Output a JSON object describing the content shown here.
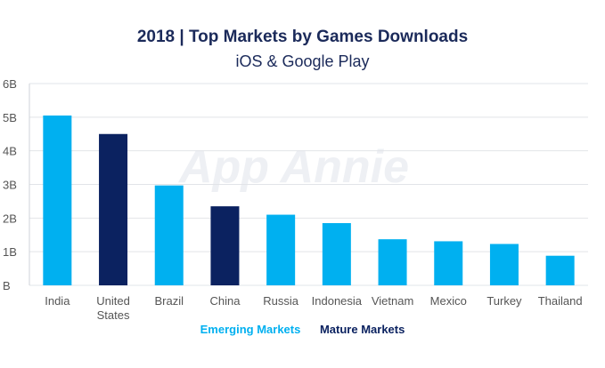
{
  "chart_data": {
    "type": "bar",
    "title": "2018 | Top Markets by Games Downloads",
    "subtitle": "iOS & Google Play",
    "watermark": "App Annie",
    "categories": [
      "India",
      "United\nStates",
      "Brazil",
      "China",
      "Russia",
      "Indonesia",
      "Vietnam",
      "Mexico",
      "Turkey",
      "Thailand"
    ],
    "values": [
      5.05,
      4.5,
      2.97,
      2.35,
      2.1,
      1.85,
      1.37,
      1.31,
      1.23,
      0.88
    ],
    "groups": [
      "Emerging Markets",
      "Mature Markets",
      "Emerging Markets",
      "Mature Markets",
      "Emerging Markets",
      "Emerging Markets",
      "Emerging Markets",
      "Emerging Markets",
      "Emerging Markets",
      "Emerging Markets"
    ],
    "ylim": [
      0,
      6
    ],
    "yticks": [
      "B",
      "1B",
      "2B",
      "3B",
      "4B",
      "5B",
      "6B"
    ],
    "grid": true,
    "legend": [
      {
        "name": "Emerging Markets",
        "color": "#00b0f0"
      },
      {
        "name": "Mature Markets",
        "color": "#0b2260"
      }
    ],
    "legend_position": "bottom"
  }
}
